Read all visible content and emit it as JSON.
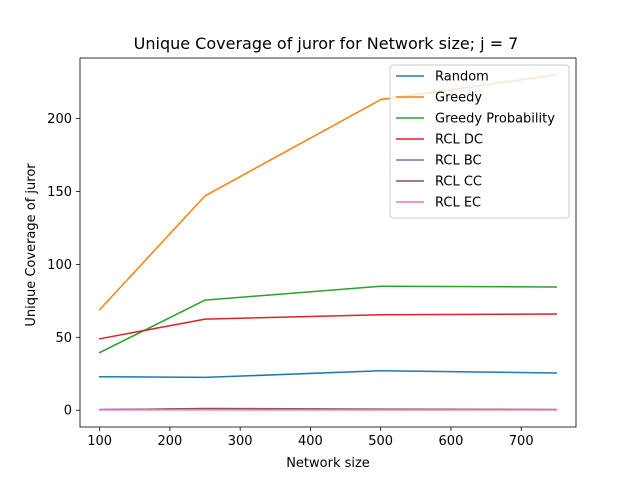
{
  "chart_data": {
    "type": "line",
    "title": "Unique Coverage of juror for Network size; j = 7",
    "xlabel": "Network size",
    "ylabel": "Unique Coverage of juror",
    "x": [
      100,
      250,
      500,
      750
    ],
    "xlim": [
      72,
      778
    ],
    "ylim": [
      -11.5,
      241.5
    ],
    "xticks": [
      100,
      200,
      300,
      400,
      500,
      600,
      700
    ],
    "yticks": [
      0,
      50,
      100,
      150,
      200
    ],
    "grid": false,
    "legend_position": "top-right",
    "series": [
      {
        "name": "Random",
        "color": "#1f77b4",
        "values": [
          23,
          22.5,
          27,
          25.5
        ]
      },
      {
        "name": "Greedy",
        "color": "#ff7f0e",
        "values": [
          69,
          147,
          213,
          230
        ]
      },
      {
        "name": "Greedy Probability",
        "color": "#2ca02c",
        "values": [
          39.5,
          75.5,
          85,
          84.5
        ]
      },
      {
        "name": "RCL DC",
        "color": "#d62728",
        "values": [
          49,
          62.5,
          65.5,
          66
        ]
      },
      {
        "name": "RCL BC",
        "color": "#9467bd",
        "values": [
          0.5,
          1,
          0.3,
          0.3
        ]
      },
      {
        "name": "RCL CC",
        "color": "#8c564b",
        "values": [
          0.3,
          1.2,
          0.8,
          0.5
        ]
      },
      {
        "name": "RCL EC",
        "color": "#e377c2",
        "values": [
          0.2,
          0.3,
          0.2,
          0.2
        ]
      }
    ]
  }
}
